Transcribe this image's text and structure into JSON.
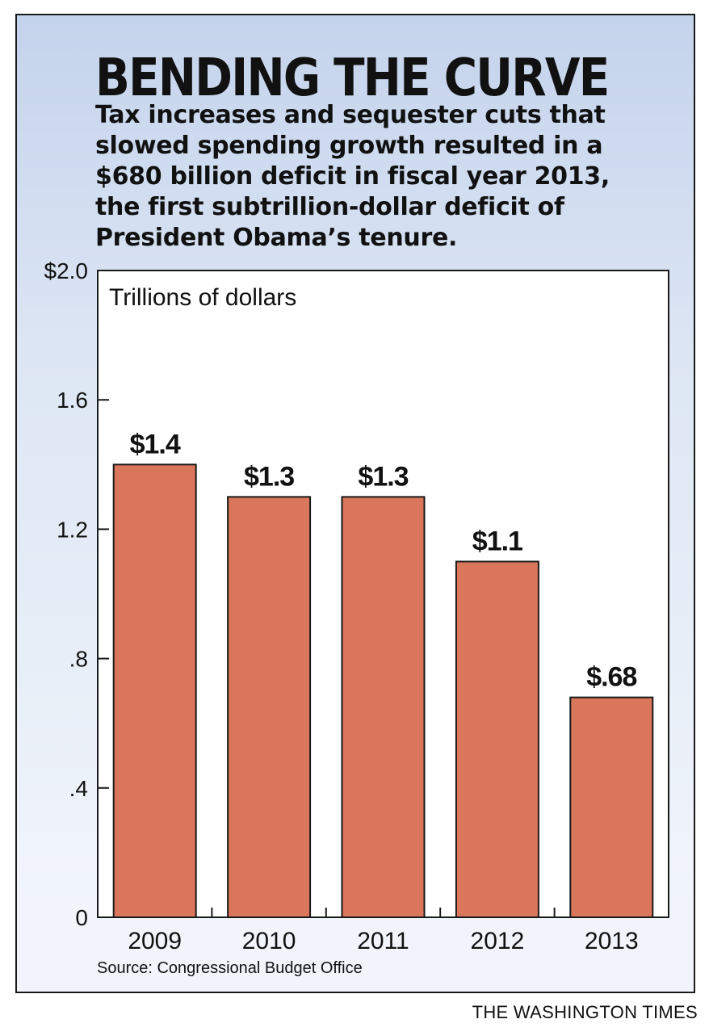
{
  "title": "BENDING THE CURVE",
  "subtitle_lines": [
    "Tax increases and sequester cuts that",
    "slowed spending growth resulted in a",
    "$680 billion deficit in fiscal year 2013,",
    "the first subtrillion-dollar deficit of",
    "President Obama’s tenure."
  ],
  "source": "Source: Congressional Budget Office",
  "credit": "THE WASHINGTON TIMES",
  "colors": {
    "bar": "#d9765b",
    "background": "#dde6f4"
  },
  "chart_data": {
    "type": "bar",
    "unit_label": "Trillions of dollars",
    "categories": [
      "2009",
      "2010",
      "2011",
      "2012",
      "2013"
    ],
    "values": [
      1.4,
      1.3,
      1.3,
      1.1,
      0.68
    ],
    "data_labels": [
      "$1.4",
      "$1.3",
      "$1.3",
      "$1.1",
      "$.68"
    ],
    "ylim": [
      0,
      2.0
    ],
    "yticks": [
      0,
      0.4,
      0.8,
      1.2,
      1.6,
      2.0
    ],
    "ytick_labels": [
      "0",
      ".4",
      ".8",
      "1.2",
      "1.6",
      "$2.0"
    ],
    "grid": false,
    "legend": "none"
  }
}
